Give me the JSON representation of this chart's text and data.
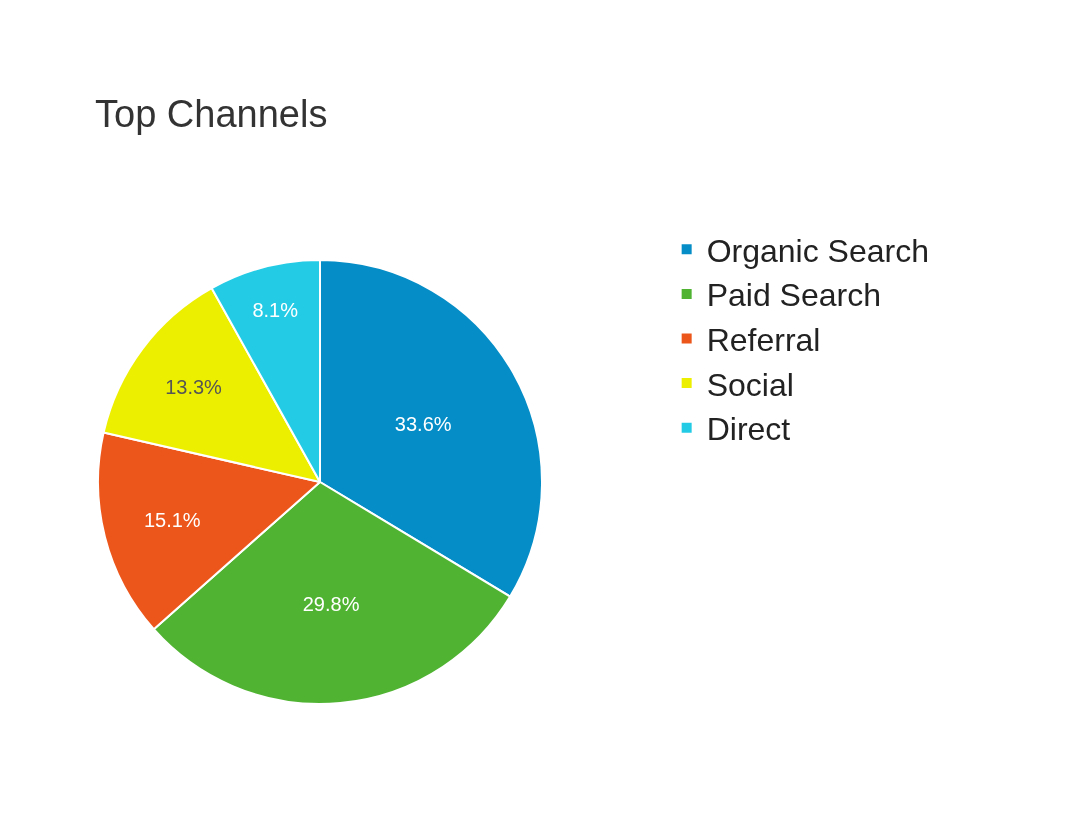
{
  "chart_data": {
    "type": "pie",
    "title": "Top Channels",
    "categories": [
      "Organic Search",
      "Paid Search",
      "Referral",
      "Social",
      "Direct"
    ],
    "values": [
      33.6,
      29.8,
      15.1,
      13.3,
      8.1
    ],
    "value_labels": [
      "33.6%",
      "29.8%",
      "15.1%",
      "13.3%",
      "8.1%"
    ],
    "colors": [
      "#058dc7",
      "#50b432",
      "#ed561b",
      "#edef00",
      "#24cbe5"
    ],
    "legend": "right"
  }
}
